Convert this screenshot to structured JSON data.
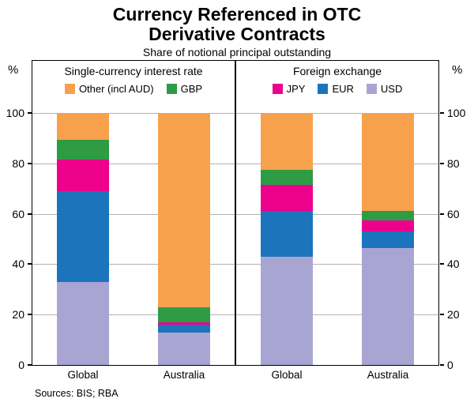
{
  "title": {
    "line1": "Currency Referenced in OTC",
    "line2": "Derivative Contracts"
  },
  "subtitle": "Share of notional principal outstanding",
  "footer": {
    "sources": "Sources: BIS; RBA"
  },
  "axis": {
    "unit": "%",
    "ticks": [
      0,
      20,
      40,
      60,
      80,
      100
    ]
  },
  "chart_data": {
    "type": "bar",
    "stacked": true,
    "ylim": [
      0,
      100
    ],
    "ylabel": "%",
    "grid": true,
    "colors": {
      "USD": "#A9A5D3",
      "EUR": "#1C75BC",
      "JPY": "#EC008C",
      "GBP": "#2E9B45",
      "Other (incl AUD)": "#F7A14D"
    },
    "panels": [
      {
        "title": "Single-currency interest rate",
        "legend": [
          "Other (incl AUD)",
          "GBP"
        ],
        "categories": [
          "Global",
          "Australia"
        ],
        "series": [
          {
            "name": "USD",
            "values": [
              33,
              13
            ]
          },
          {
            "name": "EUR",
            "values": [
              36,
              3
            ]
          },
          {
            "name": "JPY",
            "values": [
              12.5,
              1
            ]
          },
          {
            "name": "GBP",
            "values": [
              8,
              6
            ]
          },
          {
            "name": "Other (incl AUD)",
            "values": [
              10.5,
              77
            ]
          }
        ]
      },
      {
        "title": "Foreign exchange",
        "legend": [
          "JPY",
          "EUR",
          "USD"
        ],
        "categories": [
          "Global",
          "Australia"
        ],
        "series": [
          {
            "name": "USD",
            "values": [
              43,
              46.5
            ]
          },
          {
            "name": "EUR",
            "values": [
              18,
              6.5
            ]
          },
          {
            "name": "JPY",
            "values": [
              10.5,
              4.5
            ]
          },
          {
            "name": "GBP",
            "values": [
              6,
              3.5
            ]
          },
          {
            "name": "Other (incl AUD)",
            "values": [
              22.5,
              39
            ]
          }
        ]
      }
    ]
  }
}
